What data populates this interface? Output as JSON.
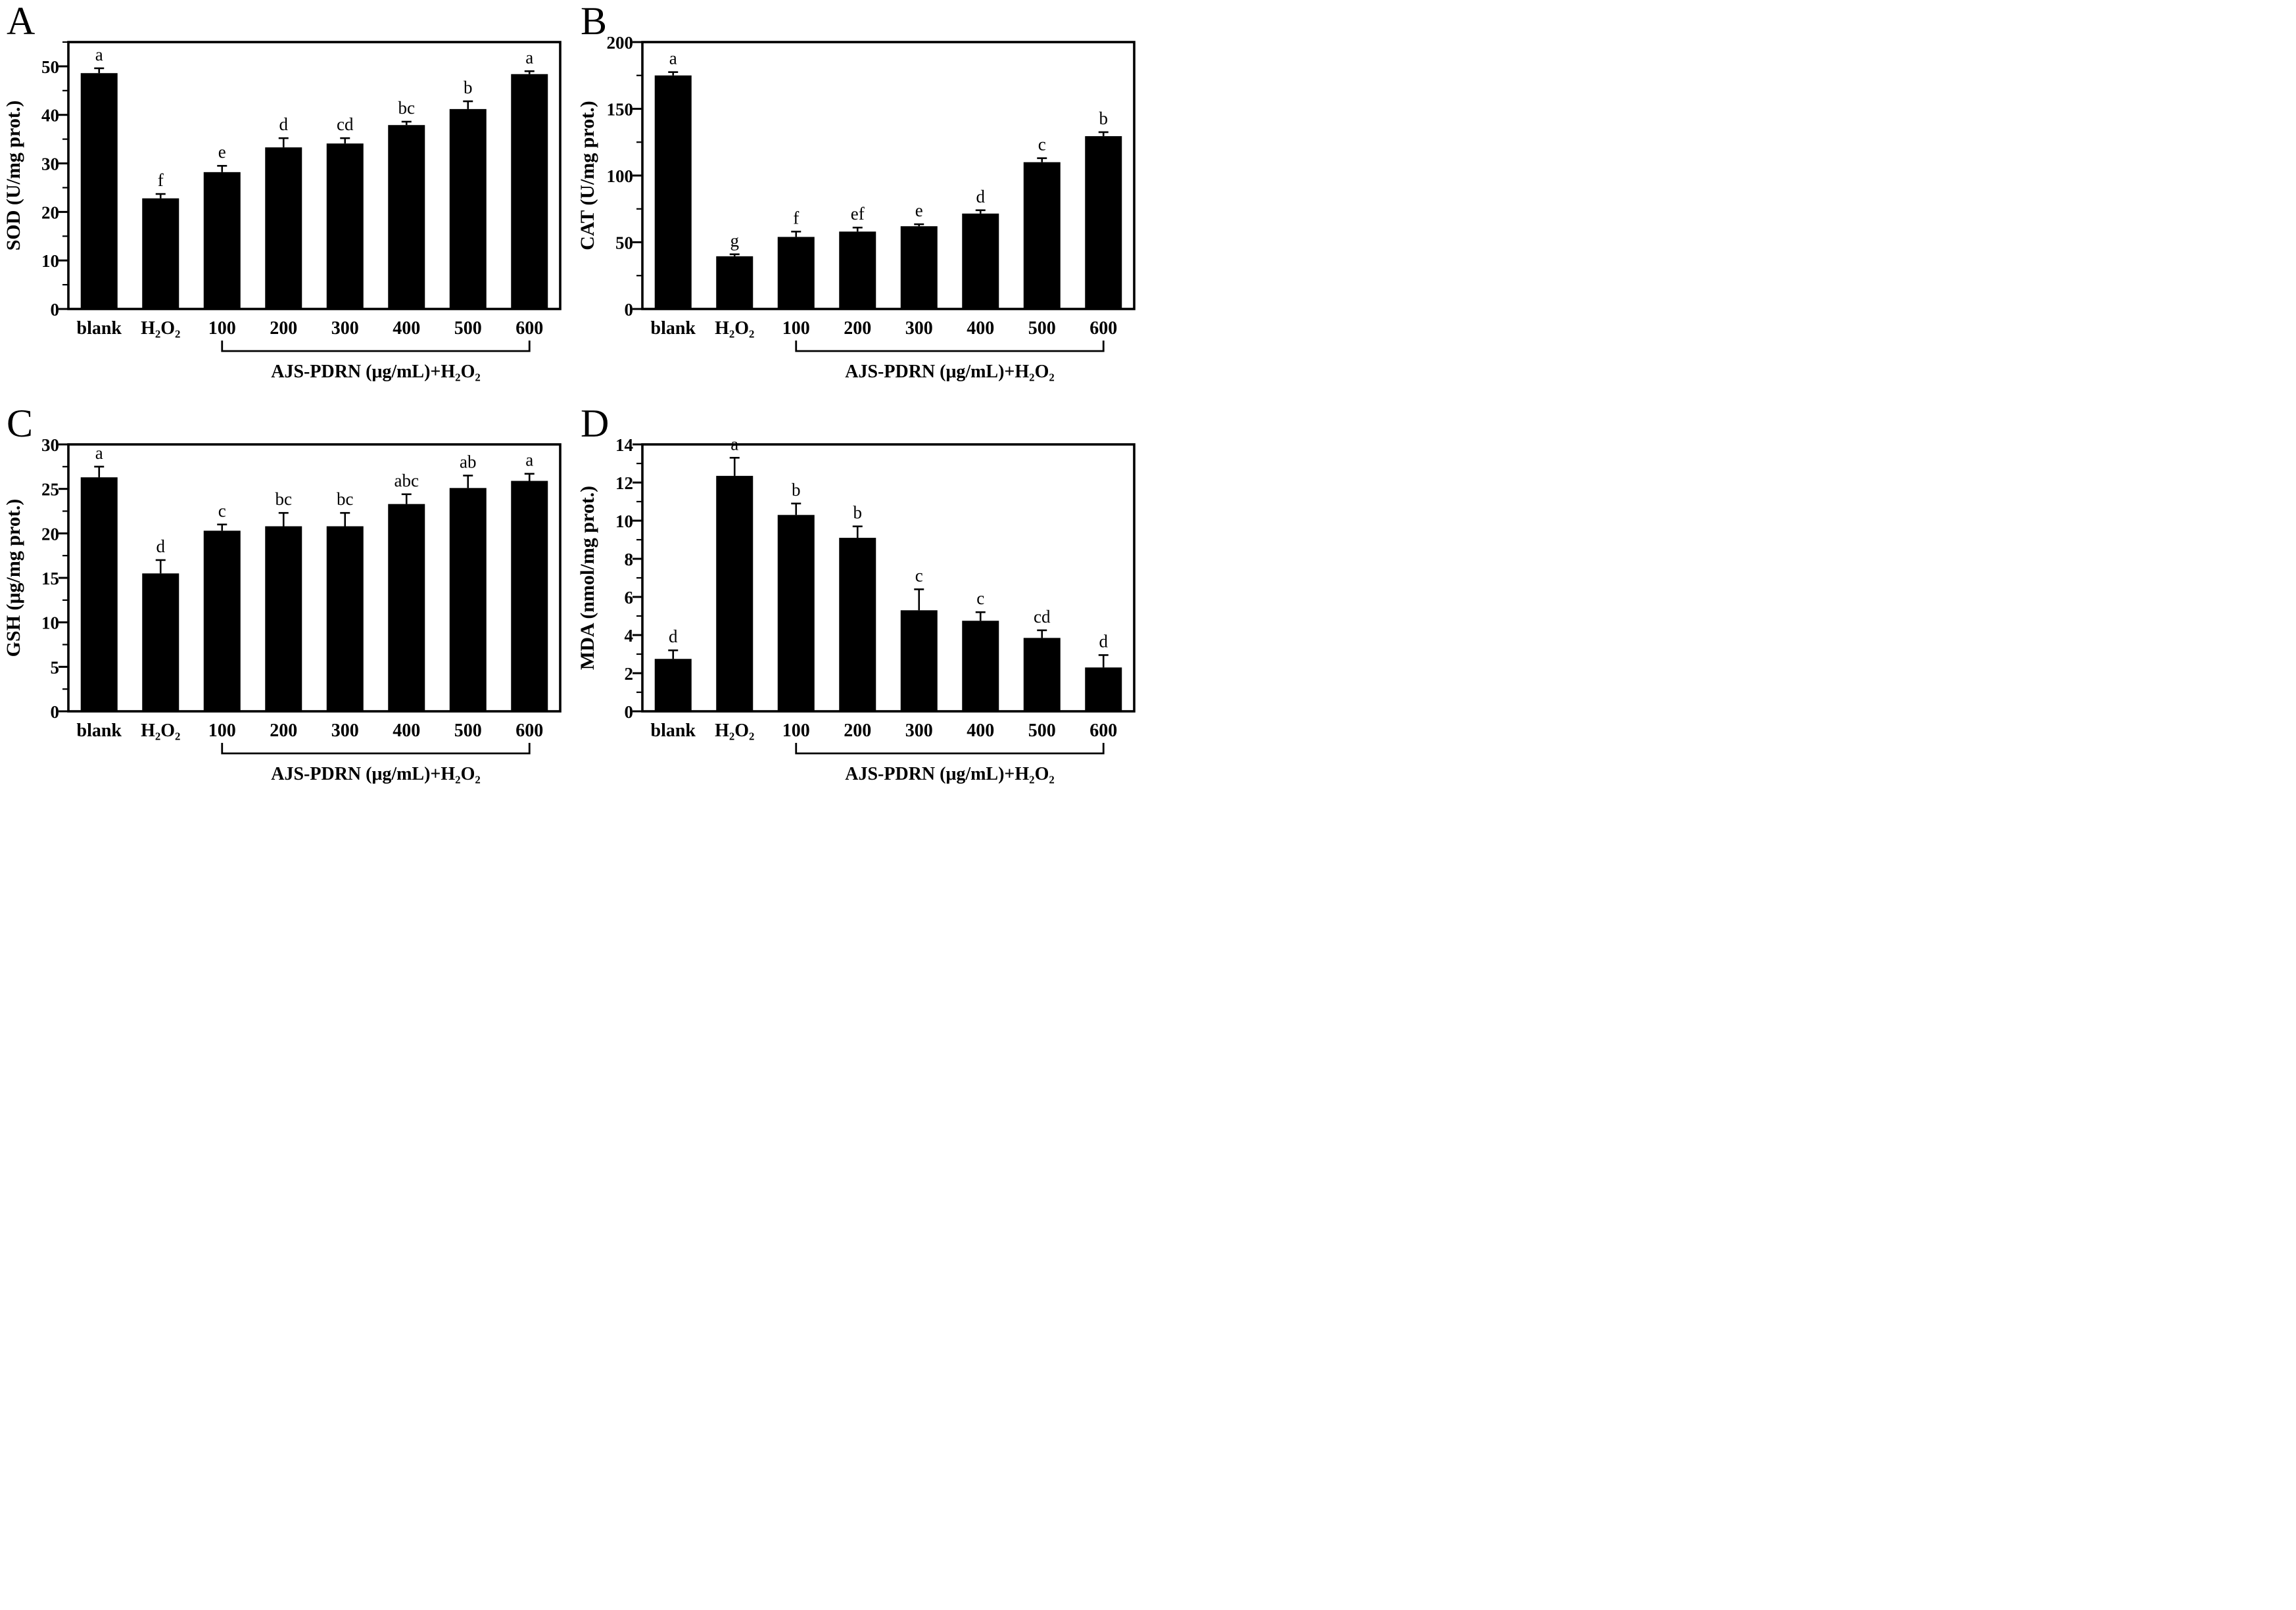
{
  "figure": {
    "background": "#ffffff",
    "ink": "#000000",
    "bar_color": "#000000",
    "grid": false,
    "legend": null
  },
  "chart_data": [
    {
      "panel_letter": "A",
      "type": "bar",
      "title": "",
      "xlabel": "",
      "ylabel": "SOD (U/mg prot.)",
      "categories": [
        "blank",
        "H₂O₂",
        "100",
        "200",
        "300",
        "400",
        "500",
        "600"
      ],
      "values": [
        48.6,
        22.8,
        28.2,
        33.3,
        34.1,
        37.9,
        41.2,
        48.4
      ],
      "errors": [
        1.0,
        0.9,
        1.3,
        1.9,
        1.1,
        0.7,
        1.6,
        0.6
      ],
      "sig_letters": [
        "a",
        "f",
        "e",
        "d",
        "cd",
        "bc",
        "b",
        "a"
      ],
      "ylim": [
        0,
        55
      ],
      "ytick_major": 10,
      "ytick_minor": 5,
      "group_bracket": {
        "from": "100",
        "to": "600",
        "label": "AJS-PDRN (μg/mL)+H₂O₂"
      }
    },
    {
      "panel_letter": "B",
      "type": "bar",
      "title": "",
      "xlabel": "",
      "ylabel": "CAT (U/mg prot.)",
      "categories": [
        "blank",
        "H₂O₂",
        "100",
        "200",
        "300",
        "400",
        "500",
        "600"
      ],
      "values": [
        175,
        39.5,
        54,
        58,
        62,
        71.5,
        110,
        129.5
      ],
      "errors": [
        2.5,
        1.5,
        4,
        3,
        1.5,
        2.5,
        3,
        3
      ],
      "sig_letters": [
        "a",
        "g",
        "f",
        "ef",
        "e",
        "d",
        "c",
        "b"
      ],
      "ylim": [
        0,
        200
      ],
      "ytick_major": 50,
      "ytick_minor": 25,
      "group_bracket": {
        "from": "100",
        "to": "600",
        "label": "AJS-PDRN (μg/mL)+H₂O₂"
      }
    },
    {
      "panel_letter": "C",
      "type": "bar",
      "title": "",
      "xlabel": "",
      "ylabel": "GSH (μg/mg prot.)",
      "categories": [
        "blank",
        "H₂O₂",
        "100",
        "200",
        "300",
        "400",
        "500",
        "600"
      ],
      "values": [
        26.3,
        15.5,
        20.3,
        20.8,
        20.8,
        23.3,
        25.1,
        25.9
      ],
      "errors": [
        1.2,
        1.5,
        0.7,
        1.5,
        1.5,
        1.1,
        1.4,
        0.8
      ],
      "sig_letters": [
        "a",
        "d",
        "c",
        "bc",
        "bc",
        "abc",
        "ab",
        "a"
      ],
      "ylim": [
        0,
        30
      ],
      "ytick_major": 5,
      "ytick_minor": 2.5,
      "group_bracket": {
        "from": "100",
        "to": "600",
        "label": "AJS-PDRN (μg/mL)+H₂O₂"
      }
    },
    {
      "panel_letter": "D",
      "type": "bar",
      "title": "",
      "xlabel": "",
      "ylabel": "MDA (nmol/mg prot.)",
      "categories": [
        "blank",
        "H₂O₂",
        "100",
        "200",
        "300",
        "400",
        "500",
        "600"
      ],
      "values": [
        2.75,
        12.35,
        10.3,
        9.1,
        5.3,
        4.75,
        3.85,
        2.3
      ],
      "errors": [
        0.45,
        0.95,
        0.6,
        0.6,
        1.1,
        0.45,
        0.4,
        0.65
      ],
      "sig_letters": [
        "d",
        "a",
        "b",
        "b",
        "c",
        "c",
        "cd",
        "d"
      ],
      "ylim": [
        0,
        14
      ],
      "ytick_major": 2,
      "ytick_minor": 1,
      "group_bracket": {
        "from": "100",
        "to": "600",
        "label": "AJS-PDRN (μg/mL)+H₂O₂"
      }
    }
  ]
}
